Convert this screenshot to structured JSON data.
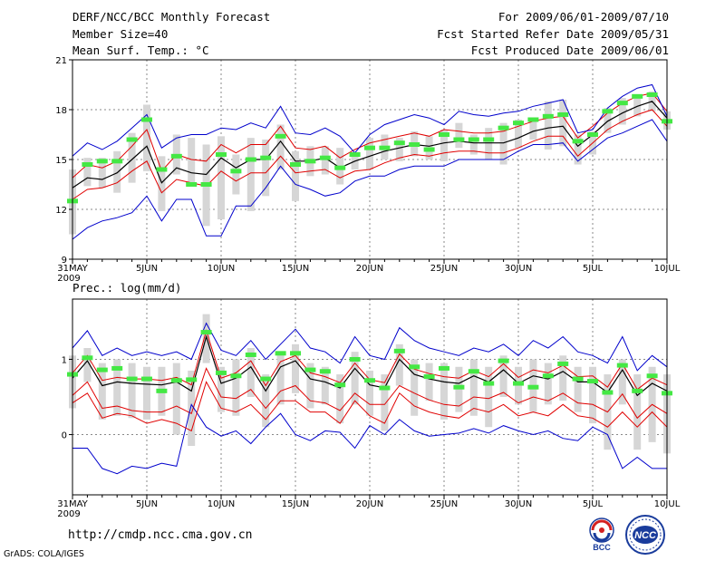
{
  "header": {
    "title": "DERF/NCC/BCC Monthly Forecast",
    "member_size": "Member Size=40",
    "variable": "Mean Surf. Temp.: °C",
    "period": "For 2009/06/01-2009/07/10",
    "start_date": "Fcst Started Refer Date 2009/05/31",
    "produced_date": "Fcst Produced Date 2009/06/01"
  },
  "footer": {
    "url": "http://cmdp.ncc.cma.gov.cn",
    "grads": "GrADS: COLA/IGES",
    "logo_bcc": "BCC",
    "logo_ncc": "NCC"
  },
  "colors": {
    "ensemble_mean": "#000000",
    "spread_std": "#e00000",
    "extremes": "#0000cc",
    "observation_bar": "#44e844",
    "member_box": "#d6d6d6",
    "grid": "#888888"
  },
  "chart_data": [
    {
      "type": "line",
      "title": "Mean Surf. Temp.: °C",
      "x": [
        "31MAY",
        "1JUN",
        "2JUN",
        "3JUN",
        "4JUN",
        "5JUN",
        "6JUN",
        "7JUN",
        "8JUN",
        "9JUN",
        "10JUN",
        "11JUN",
        "12JUN",
        "13JUN",
        "14JUN",
        "15JUN",
        "16JUN",
        "17JUN",
        "18JUN",
        "19JUN",
        "20JUN",
        "21JUN",
        "22JUN",
        "23JUN",
        "24JUN",
        "25JUN",
        "26JUN",
        "27JUN",
        "28JUN",
        "29JUN",
        "30JUN",
        "1JUL",
        "2JUL",
        "3JUL",
        "4JUL",
        "5JUL",
        "6JUL",
        "7JUL",
        "8JUL",
        "9JUL",
        "10JUL"
      ],
      "xticks": [
        "31MAY",
        "5JUN",
        "10JUN",
        "15JUN",
        "20JUN",
        "25JUN",
        "30JUN",
        "5JUL",
        "10JUL"
      ],
      "xtick_year": "2009",
      "yticks": [
        9,
        12,
        15,
        18,
        21
      ],
      "ylim": [
        9,
        21
      ],
      "series": [
        {
          "name": "ensemble mean",
          "values": [
            13.3,
            13.9,
            13.8,
            14.2,
            15.0,
            15.8,
            13.6,
            14.5,
            14.2,
            14.1,
            15.1,
            14.5,
            15.0,
            15.0,
            16.1,
            14.9,
            14.9,
            15.1,
            14.5,
            14.9,
            15.2,
            15.5,
            15.7,
            15.9,
            15.8,
            16.0,
            16.1,
            16.0,
            16.0,
            16.0,
            16.3,
            16.7,
            16.9,
            17.0,
            15.8,
            16.5,
            17.3,
            17.8,
            18.2,
            18.5,
            17.5
          ]
        },
        {
          "name": "mean + std",
          "values": [
            13.9,
            14.7,
            14.5,
            14.9,
            15.8,
            16.8,
            14.3,
            15.3,
            15.0,
            14.9,
            15.9,
            15.4,
            15.9,
            15.9,
            17.0,
            15.7,
            15.6,
            15.8,
            15.1,
            15.6,
            16.0,
            16.2,
            16.4,
            16.6,
            16.4,
            16.8,
            16.7,
            16.6,
            16.6,
            16.7,
            17.0,
            17.3,
            17.5,
            17.6,
            16.3,
            17.0,
            17.8,
            18.4,
            18.8,
            19.0,
            17.9
          ]
        },
        {
          "name": "mean - std",
          "values": [
            12.6,
            13.2,
            13.3,
            13.6,
            14.3,
            14.9,
            13.0,
            13.8,
            13.6,
            13.4,
            14.3,
            13.7,
            14.2,
            14.2,
            15.2,
            14.2,
            14.3,
            14.4,
            13.9,
            14.3,
            14.4,
            14.8,
            15.1,
            15.3,
            15.2,
            15.4,
            15.5,
            15.5,
            15.4,
            15.4,
            15.7,
            16.1,
            16.4,
            16.4,
            15.2,
            16.0,
            16.8,
            17.3,
            17.7,
            18.0,
            17.0
          ]
        },
        {
          "name": "max",
          "values": [
            15.2,
            16.0,
            15.6,
            16.1,
            16.9,
            17.7,
            15.7,
            16.3,
            16.5,
            16.5,
            16.9,
            16.8,
            17.2,
            16.9,
            18.2,
            16.6,
            16.5,
            16.9,
            16.4,
            15.4,
            16.5,
            17.1,
            17.4,
            17.7,
            17.5,
            17.1,
            17.9,
            17.7,
            17.6,
            17.8,
            17.9,
            18.2,
            18.4,
            18.6,
            16.6,
            16.8,
            18.1,
            18.8,
            19.3,
            19.5,
            17.6
          ]
        },
        {
          "name": "min",
          "values": [
            10.2,
            10.9,
            11.3,
            11.5,
            11.8,
            12.8,
            11.3,
            12.6,
            12.6,
            10.4,
            10.4,
            12.2,
            12.2,
            13.3,
            14.6,
            13.5,
            13.2,
            12.8,
            13.0,
            13.7,
            14.0,
            14.0,
            14.4,
            14.6,
            14.6,
            14.6,
            15.0,
            15.0,
            15.0,
            15.0,
            15.5,
            15.9,
            15.9,
            16.0,
            14.9,
            15.6,
            16.3,
            16.6,
            17.0,
            17.4,
            16.1
          ]
        }
      ],
      "member_range": {
        "low": [
          10.5,
          13.4,
          13.3,
          13.0,
          13.6,
          14.3,
          11.9,
          14.1,
          13.4,
          11.0,
          11.4,
          12.9,
          11.9,
          12.8,
          14.4,
          12.5,
          14.0,
          14.1,
          13.5,
          14.4,
          14.4,
          15.0,
          14.9,
          15.2,
          15.0,
          14.9,
          15.7,
          15.3,
          15.0,
          14.7,
          15.7,
          16.2,
          15.6,
          15.8,
          14.7,
          15.3,
          16.6,
          17.1,
          17.6,
          17.9,
          16.8
        ],
        "high": [
          14.4,
          15.1,
          15.1,
          15.5,
          16.6,
          18.3,
          15.2,
          16.5,
          16.3,
          15.9,
          16.4,
          15.3,
          16.3,
          16.2,
          17.1,
          15.5,
          15.8,
          15.8,
          15.7,
          15.4,
          16.3,
          16.5,
          16.3,
          16.7,
          16.4,
          16.8,
          17.2,
          16.5,
          16.9,
          17.2,
          17.4,
          17.5,
          18.5,
          18.6,
          16.5,
          16.7,
          18.1,
          18.7,
          18.9,
          19.1,
          17.9
        ]
      },
      "observations": [
        12.5,
        14.7,
        14.9,
        14.9,
        16.2,
        17.4,
        14.4,
        15.2,
        13.5,
        13.5,
        15.3,
        14.3,
        15.0,
        15.1,
        16.4,
        14.7,
        14.9,
        15.1,
        14.5,
        15.3,
        15.7,
        15.7,
        16.0,
        15.9,
        15.6,
        16.5,
        16.2,
        16.2,
        16.2,
        16.9,
        17.2,
        17.4,
        17.6,
        17.7,
        16.1,
        16.5,
        17.9,
        18.4,
        18.8,
        18.9,
        17.3
      ]
    },
    {
      "type": "line",
      "title": "Prec.: log(mm/d)",
      "x": [
        "31MAY",
        "1JUN",
        "2JUN",
        "3JUN",
        "4JUN",
        "5JUN",
        "6JUN",
        "7JUN",
        "8JUN",
        "9JUN",
        "10JUN",
        "11JUN",
        "12JUN",
        "13JUN",
        "14JUN",
        "15JUN",
        "16JUN",
        "17JUN",
        "18JUN",
        "19JUN",
        "20JUN",
        "21JUN",
        "22JUN",
        "23JUN",
        "24JUN",
        "25JUN",
        "26JUN",
        "27JUN",
        "28JUN",
        "29JUN",
        "30JUN",
        "1JUL",
        "2JUL",
        "3JUL",
        "4JUL",
        "5JUL",
        "6JUL",
        "7JUL",
        "8JUL",
        "9JUL",
        "10JUL"
      ],
      "xticks": [
        "31MAY",
        "5JUN",
        "10JUN",
        "15JUN",
        "20JUN",
        "25JUN",
        "30JUN",
        "5JUL",
        "10JUL"
      ],
      "xtick_year": "2009",
      "yticks": [
        0,
        1
      ],
      "ylim": [
        -0.8,
        1.8
      ],
      "series": [
        {
          "name": "ensemble mean",
          "values": [
            0.75,
            0.98,
            0.65,
            0.7,
            0.68,
            0.67,
            0.66,
            0.7,
            0.58,
            1.3,
            0.68,
            0.75,
            0.9,
            0.58,
            0.9,
            0.98,
            0.74,
            0.7,
            0.62,
            0.88,
            0.66,
            0.62,
            1.0,
            0.8,
            0.74,
            0.7,
            0.68,
            0.78,
            0.7,
            0.86,
            0.68,
            0.78,
            0.74,
            0.84,
            0.7,
            0.7,
            0.56,
            0.86,
            0.52,
            0.68,
            0.58
          ]
        },
        {
          "name": "mean + std",
          "values": [
            0.82,
            1.05,
            0.72,
            0.76,
            0.74,
            0.74,
            0.72,
            0.76,
            0.66,
            1.38,
            0.75,
            0.82,
            0.98,
            0.65,
            0.97,
            1.05,
            0.82,
            0.77,
            0.69,
            0.95,
            0.73,
            0.69,
            1.07,
            0.87,
            0.81,
            0.77,
            0.75,
            0.85,
            0.77,
            0.94,
            0.76,
            0.86,
            0.82,
            0.92,
            0.77,
            0.78,
            0.63,
            0.94,
            0.6,
            0.75,
            0.66
          ]
        },
        {
          "name": "mean - std",
          "values": [
            0.52,
            0.7,
            0.35,
            0.38,
            0.32,
            0.3,
            0.3,
            0.38,
            0.28,
            0.88,
            0.5,
            0.48,
            0.6,
            0.35,
            0.58,
            0.65,
            0.45,
            0.42,
            0.32,
            0.55,
            0.4,
            0.4,
            0.65,
            0.55,
            0.46,
            0.4,
            0.38,
            0.5,
            0.48,
            0.56,
            0.42,
            0.5,
            0.45,
            0.55,
            0.42,
            0.4,
            0.3,
            0.54,
            0.22,
            0.4,
            0.28
          ]
        },
        {
          "name": "max",
          "values": [
            1.15,
            1.38,
            1.05,
            1.15,
            1.05,
            1.1,
            1.05,
            1.1,
            1.0,
            1.48,
            1.12,
            1.05,
            1.25,
            1.0,
            1.2,
            1.4,
            1.15,
            1.1,
            0.95,
            1.3,
            1.05,
            1.0,
            1.42,
            1.25,
            1.15,
            1.1,
            1.05,
            1.15,
            1.1,
            1.2,
            1.05,
            1.25,
            1.15,
            1.3,
            1.1,
            1.05,
            0.95,
            1.3,
            0.85,
            1.05,
            0.9
          ]
        },
        {
          "name": "min",
          "values": [
            -0.18,
            -0.18,
            -0.45,
            -0.52,
            -0.42,
            -0.45,
            -0.38,
            -0.42,
            0.4,
            0.1,
            -0.02,
            0.05,
            -0.12,
            0.1,
            0.28,
            0.0,
            -0.08,
            0.05,
            0.03,
            -0.18,
            0.12,
            0.0,
            0.2,
            0.05,
            -0.02,
            0.0,
            0.02,
            0.08,
            0.02,
            0.12,
            0.05,
            0.0,
            0.05,
            -0.05,
            -0.08,
            0.1,
            0.0,
            -0.45,
            -0.3,
            -0.45,
            -0.45
          ]
        },
        {
          "name": "mean - std (lower)",
          "values": [
            0.42,
            0.55,
            0.22,
            0.28,
            0.25,
            0.15,
            0.2,
            0.15,
            0.05,
            0.7,
            0.35,
            0.3,
            0.4,
            0.2,
            0.45,
            0.45,
            0.3,
            0.3,
            0.15,
            0.45,
            0.25,
            0.15,
            0.55,
            0.38,
            0.3,
            0.25,
            0.22,
            0.35,
            0.3,
            0.4,
            0.25,
            0.3,
            0.25,
            0.4,
            0.25,
            0.22,
            0.1,
            0.3,
            0.1,
            0.3,
            0.1
          ]
        }
      ],
      "member_range": {
        "low": [
          0.35,
          0.7,
          0.2,
          0.25,
          0.22,
          0.2,
          0.25,
          0.0,
          -0.15,
          0.95,
          0.3,
          0.25,
          0.5,
          0.1,
          0.4,
          0.55,
          0.35,
          0.4,
          0.15,
          0.4,
          0.25,
          0.05,
          0.65,
          0.25,
          0.45,
          0.2,
          0.3,
          0.25,
          0.1,
          0.5,
          0.4,
          0.3,
          0.4,
          0.45,
          0.3,
          0.15,
          -0.2,
          0.4,
          -0.2,
          -0.1,
          -0.25
        ],
        "high": [
          1.05,
          1.15,
          0.95,
          1.0,
          0.95,
          0.9,
          0.9,
          0.95,
          0.85,
          1.6,
          0.9,
          1.0,
          1.15,
          0.8,
          1.1,
          1.2,
          0.95,
          0.9,
          0.8,
          1.1,
          0.85,
          0.8,
          1.2,
          1.0,
          0.95,
          0.95,
          0.9,
          1.0,
          0.9,
          1.05,
          0.9,
          1.0,
          0.95,
          1.05,
          0.9,
          0.9,
          0.8,
          1.0,
          0.8,
          0.9,
          0.8
        ]
      },
      "observations": [
        0.8,
        1.02,
        0.86,
        0.88,
        0.74,
        0.74,
        0.58,
        0.72,
        0.73,
        1.36,
        0.82,
        0.78,
        1.06,
        0.74,
        1.08,
        1.08,
        0.86,
        0.84,
        0.66,
        1.0,
        0.72,
        0.62,
        1.11,
        0.9,
        0.77,
        0.88,
        0.63,
        0.84,
        0.68,
        0.98,
        0.68,
        0.63,
        0.78,
        0.94,
        0.74,
        0.71,
        0.56,
        0.92,
        0.58,
        0.78,
        0.55
      ]
    }
  ]
}
